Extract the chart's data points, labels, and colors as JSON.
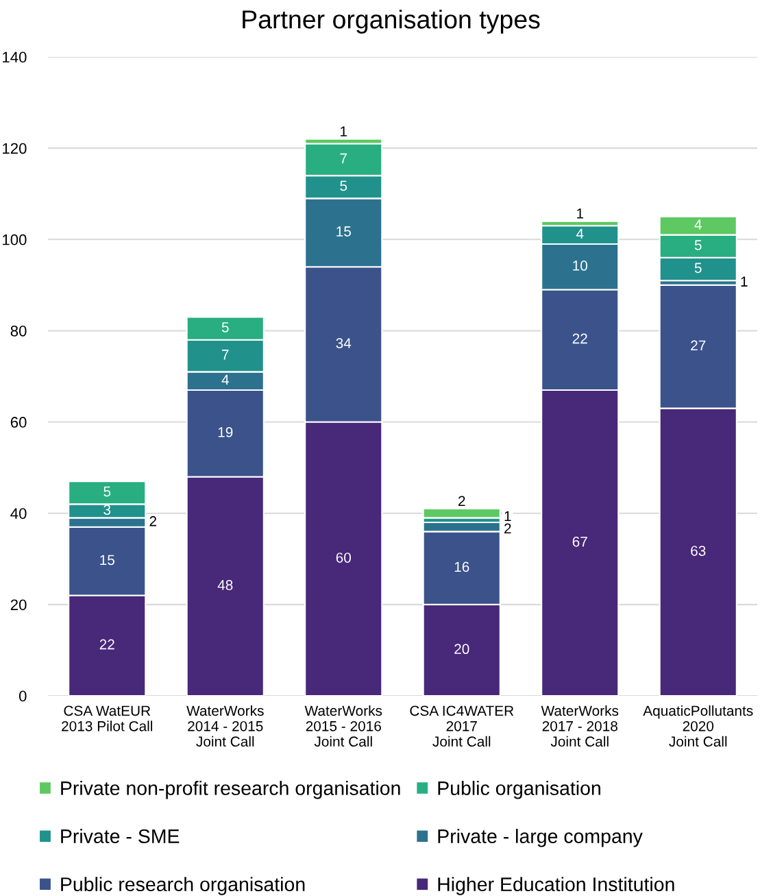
{
  "chart_data": {
    "type": "bar",
    "title": "Partner organisation types",
    "categories": [
      "CSA WatEUR\n2013 Pilot Call",
      "WaterWorks\n2014 - 2015\nJoint Call",
      "WaterWorks\n2015 - 2016\nJoint Call",
      "CSA IC4WATER\n2017\nJoint Call",
      "WaterWorks\n2017 - 2018\nJoint Call",
      "AquaticPollutants\n2020\nJoint Call"
    ],
    "stacked": true,
    "series": [
      {
        "name": "Higher Education Institution",
        "color": "#482878",
        "values": [
          22,
          48,
          60,
          20,
          67,
          63
        ]
      },
      {
        "name": "Public research organisation",
        "color": "#3b528b",
        "values": [
          15,
          19,
          34,
          16,
          22,
          27
        ]
      },
      {
        "name": "Private - large company",
        "color": "#2c728e",
        "values": [
          2,
          4,
          15,
          2,
          10,
          1
        ]
      },
      {
        "name": "Private - SME",
        "color": "#21918c",
        "values": [
          3,
          7,
          5,
          1,
          4,
          5
        ]
      },
      {
        "name": "Public organisation",
        "color": "#28ae80",
        "values": [
          5,
          5,
          7,
          null,
          null,
          5
        ]
      },
      {
        "name": "Private non-profit research organisation",
        "color": "#5ec962",
        "values": [
          null,
          null,
          1,
          2,
          1,
          4
        ]
      }
    ],
    "ylim": [
      0,
      140
    ],
    "yticks": [
      0,
      20,
      40,
      60,
      80,
      100,
      120,
      140
    ],
    "grid": "y",
    "legend": "bottom",
    "data_labels": true
  }
}
